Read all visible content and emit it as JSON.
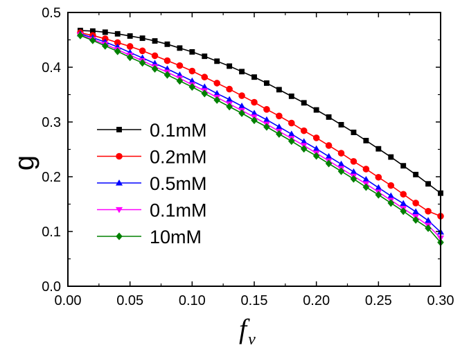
{
  "chart_data": {
    "type": "line",
    "xlabel": "f",
    "xlabel_sub": "v",
    "ylabel": "g",
    "xlim": [
      0.0,
      0.3
    ],
    "ylim": [
      0.0,
      0.5
    ],
    "xticks": [
      "0.00",
      "0.05",
      "0.10",
      "0.15",
      "0.20",
      "0.25",
      "0.30"
    ],
    "yticks": [
      "0.0",
      "0.1",
      "0.2",
      "0.3",
      "0.4",
      "0.5"
    ],
    "grid": false,
    "legend_position": "center-left",
    "x": [
      0.01,
      0.02,
      0.03,
      0.04,
      0.05,
      0.06,
      0.07,
      0.08,
      0.09,
      0.1,
      0.11,
      0.12,
      0.13,
      0.14,
      0.15,
      0.16,
      0.17,
      0.18,
      0.19,
      0.2,
      0.21,
      0.22,
      0.23,
      0.24,
      0.25,
      0.26,
      0.27,
      0.28,
      0.29,
      0.3
    ],
    "series": [
      {
        "name": "0.1mM",
        "color": "#000000",
        "marker": "square",
        "values": [
          0.467,
          0.466,
          0.464,
          0.461,
          0.457,
          0.453,
          0.448,
          0.442,
          0.435,
          0.428,
          0.42,
          0.411,
          0.402,
          0.392,
          0.382,
          0.371,
          0.359,
          0.347,
          0.335,
          0.322,
          0.309,
          0.295,
          0.281,
          0.266,
          0.251,
          0.236,
          0.22,
          0.204,
          0.187,
          0.17
        ]
      },
      {
        "name": "0.2mM",
        "color": "#ff0000",
        "marker": "circle",
        "values": [
          0.463,
          0.458,
          0.452,
          0.445,
          0.438,
          0.43,
          0.421,
          0.412,
          0.403,
          0.393,
          0.382,
          0.371,
          0.36,
          0.348,
          0.336,
          0.323,
          0.311,
          0.298,
          0.284,
          0.271,
          0.257,
          0.243,
          0.228,
          0.214,
          0.199,
          0.184,
          0.168,
          0.152,
          0.137,
          0.128
        ]
      },
      {
        "name": "0.5mM",
        "color": "#0000ff",
        "marker": "triangle-up",
        "values": [
          0.461,
          0.454,
          0.446,
          0.437,
          0.427,
          0.417,
          0.407,
          0.397,
          0.386,
          0.375,
          0.364,
          0.352,
          0.341,
          0.329,
          0.316,
          0.304,
          0.291,
          0.278,
          0.264,
          0.251,
          0.237,
          0.223,
          0.209,
          0.195,
          0.18,
          0.165,
          0.151,
          0.136,
          0.12,
          0.099
        ]
      },
      {
        "name": "0.1mM",
        "color": "#ff00ff",
        "marker": "triangle-down",
        "values": [
          0.459,
          0.451,
          0.442,
          0.432,
          0.422,
          0.412,
          0.401,
          0.391,
          0.38,
          0.368,
          0.357,
          0.345,
          0.333,
          0.321,
          0.309,
          0.296,
          0.283,
          0.27,
          0.257,
          0.243,
          0.229,
          0.215,
          0.201,
          0.187,
          0.172,
          0.157,
          0.142,
          0.127,
          0.111,
          0.088
        ]
      },
      {
        "name": "10mM",
        "color": "#008000",
        "marker": "diamond",
        "values": [
          0.458,
          0.449,
          0.439,
          0.429,
          0.418,
          0.408,
          0.397,
          0.386,
          0.375,
          0.364,
          0.352,
          0.34,
          0.328,
          0.316,
          0.303,
          0.291,
          0.278,
          0.265,
          0.251,
          0.238,
          0.224,
          0.21,
          0.196,
          0.181,
          0.167,
          0.152,
          0.137,
          0.121,
          0.106,
          0.08
        ]
      }
    ]
  }
}
